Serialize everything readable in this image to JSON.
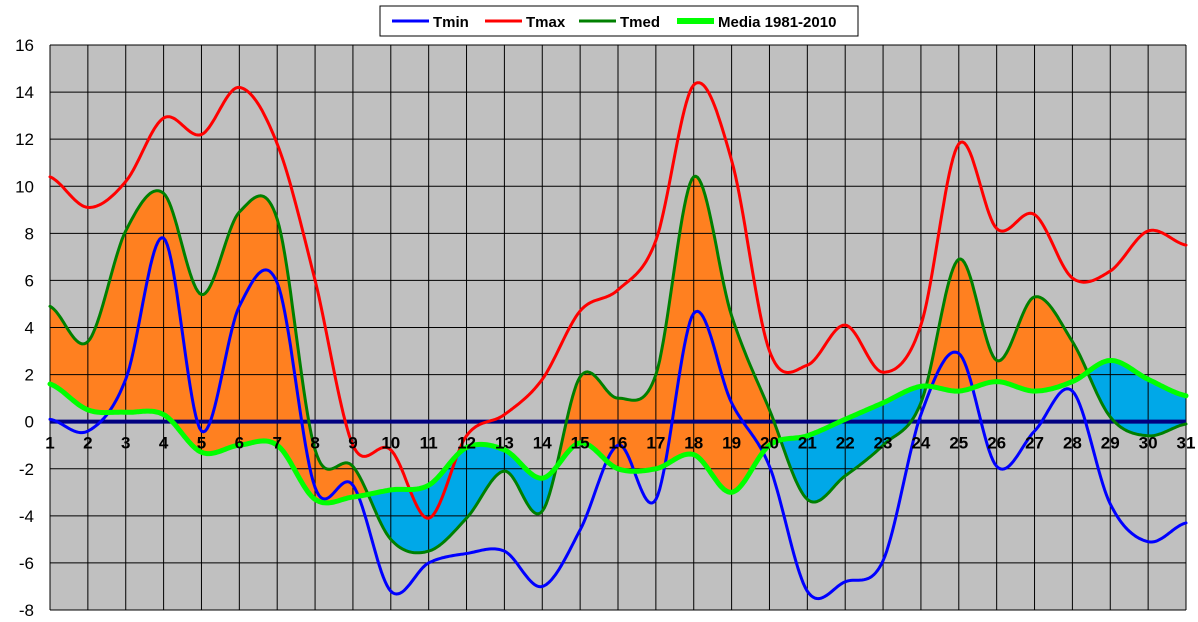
{
  "chart_data": {
    "type": "line",
    "title": "",
    "xlabel": "",
    "ylabel": "",
    "x": [
      1,
      2,
      3,
      4,
      5,
      6,
      7,
      8,
      9,
      10,
      11,
      12,
      13,
      14,
      15,
      16,
      17,
      18,
      19,
      20,
      21,
      22,
      23,
      24,
      25,
      26,
      27,
      28,
      29,
      30,
      31
    ],
    "xlim": [
      1,
      31
    ],
    "ylim": [
      -8,
      16
    ],
    "yticks": [
      -8,
      -6,
      -4,
      -2,
      0,
      2,
      4,
      6,
      8,
      10,
      12,
      14,
      16
    ],
    "grid": true,
    "legend_position": "top-center",
    "fill_above_normal_color": "#ff8020",
    "fill_below_normal_color": "#00a8e8",
    "plot_background": "#c0c0c0",
    "zero_line_color": "#000080",
    "series": [
      {
        "name": "Tmin",
        "color": "#0000ff",
        "values": [
          0.1,
          -0.4,
          1.8,
          7.8,
          -0.4,
          4.9,
          5.9,
          -2.8,
          -2.7,
          -7.2,
          -6.0,
          -5.6,
          -5.5,
          -7.0,
          -4.6,
          -1.0,
          -3.3,
          4.6,
          0.8,
          -1.9,
          -7.2,
          -6.8,
          -5.9,
          0.3,
          2.9,
          -1.9,
          -0.4,
          1.3,
          -3.5,
          -5.1,
          -4.3
        ]
      },
      {
        "name": "Tmax",
        "color": "#ff0000",
        "values": [
          10.4,
          9.1,
          10.2,
          12.9,
          12.2,
          14.2,
          11.8,
          6.0,
          -1.0,
          -1.2,
          -4.1,
          -0.6,
          0.3,
          1.8,
          4.7,
          5.6,
          7.7,
          14.3,
          11.1,
          3.0,
          2.4,
          4.1,
          2.1,
          4.1,
          11.8,
          8.2,
          8.8,
          6.1,
          6.4,
          8.1,
          7.5
        ]
      },
      {
        "name": "Tmed",
        "color": "#008000",
        "values": [
          4.9,
          3.4,
          8.1,
          9.7,
          5.4,
          8.9,
          8.6,
          -1.2,
          -1.9,
          -5.0,
          -5.5,
          -4.1,
          -2.1,
          -3.8,
          1.9,
          1.0,
          2.0,
          10.4,
          4.5,
          0.5,
          -3.3,
          -2.3,
          -1.0,
          0.8,
          6.9,
          2.6,
          5.3,
          3.4,
          0.2,
          -0.6,
          -0.1
        ]
      },
      {
        "name": "Media 1981-2010",
        "color": "#00ff00",
        "values": [
          1.6,
          0.5,
          0.4,
          0.3,
          -1.3,
          -1.0,
          -1.0,
          -3.3,
          -3.2,
          -2.9,
          -2.7,
          -1.1,
          -1.2,
          -2.4,
          -0.9,
          -2.0,
          -2.0,
          -1.4,
          -3.0,
          -1.0,
          -0.6,
          0.1,
          0.8,
          1.5,
          1.3,
          1.7,
          1.3,
          1.7,
          2.6,
          1.8,
          1.1
        ]
      }
    ]
  }
}
